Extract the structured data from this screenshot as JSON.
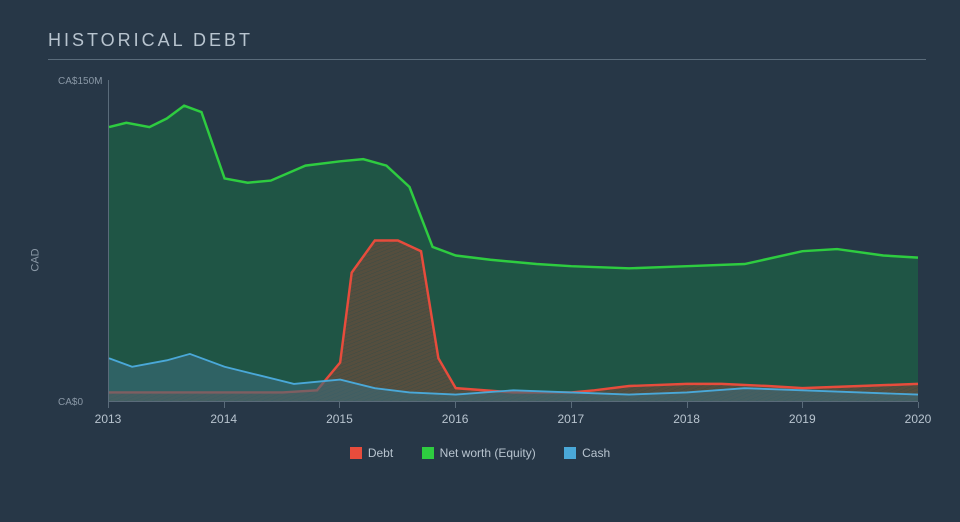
{
  "title": "HISTORICAL DEBT",
  "chart": {
    "type": "area",
    "y_axis_label": "CAD",
    "ylim": [
      0,
      150
    ],
    "y_ticks": [
      {
        "value": 0,
        "label": "CA$0"
      },
      {
        "value": 150,
        "label": "CA$150M"
      }
    ],
    "x_ticks": [
      "2013",
      "2014",
      "2015",
      "2016",
      "2017",
      "2018",
      "2019",
      "2020"
    ],
    "xlim": [
      2013,
      2020
    ],
    "background_color": "#273747",
    "axis_color": "#5a6b7a",
    "tick_font_color": "#8a98a6",
    "x_tick_font_color": "#b8c4cf",
    "title_color": "#b8c4cf",
    "title_fontsize": 18,
    "tick_fontsize": 10,
    "series": [
      {
        "name": "Net worth (Equity)",
        "stroke": "#2ecc40",
        "fill": "#1e5a45",
        "fill_opacity": 0.85,
        "stroke_width": 2,
        "hatched": false,
        "data": [
          [
            2013.0,
            128
          ],
          [
            2013.15,
            130
          ],
          [
            2013.35,
            128
          ],
          [
            2013.5,
            132
          ],
          [
            2013.65,
            138
          ],
          [
            2013.8,
            135
          ],
          [
            2014.0,
            104
          ],
          [
            2014.2,
            102
          ],
          [
            2014.4,
            103
          ],
          [
            2014.7,
            110
          ],
          [
            2015.0,
            112
          ],
          [
            2015.2,
            113
          ],
          [
            2015.4,
            110
          ],
          [
            2015.6,
            100
          ],
          [
            2015.8,
            72
          ],
          [
            2016.0,
            68
          ],
          [
            2016.3,
            66
          ],
          [
            2016.7,
            64
          ],
          [
            2017.0,
            63
          ],
          [
            2017.5,
            62
          ],
          [
            2018.0,
            63
          ],
          [
            2018.5,
            64
          ],
          [
            2019.0,
            70
          ],
          [
            2019.3,
            71
          ],
          [
            2019.7,
            68
          ],
          [
            2020.0,
            67
          ]
        ]
      },
      {
        "name": "Debt",
        "stroke": "#e74c3c",
        "fill": "#7a4a3a",
        "fill_opacity": 0.6,
        "stroke_width": 2,
        "hatched": true,
        "hatch_color": "#3a5a5a",
        "data": [
          [
            2013.0,
            4
          ],
          [
            2013.5,
            4
          ],
          [
            2014.0,
            4
          ],
          [
            2014.5,
            4
          ],
          [
            2014.8,
            5
          ],
          [
            2015.0,
            18
          ],
          [
            2015.1,
            60
          ],
          [
            2015.3,
            75
          ],
          [
            2015.5,
            75
          ],
          [
            2015.7,
            70
          ],
          [
            2015.85,
            20
          ],
          [
            2016.0,
            6
          ],
          [
            2016.5,
            4
          ],
          [
            2017.0,
            4
          ],
          [
            2017.2,
            5
          ],
          [
            2017.5,
            7
          ],
          [
            2018.0,
            8
          ],
          [
            2018.3,
            8
          ],
          [
            2018.7,
            7
          ],
          [
            2019.0,
            6
          ],
          [
            2019.5,
            7
          ],
          [
            2020.0,
            8
          ]
        ]
      },
      {
        "name": "Cash",
        "stroke": "#4aa8d8",
        "fill": "#3a6a7a",
        "fill_opacity": 0.6,
        "stroke_width": 1.5,
        "hatched": false,
        "data": [
          [
            2013.0,
            20
          ],
          [
            2013.2,
            16
          ],
          [
            2013.5,
            19
          ],
          [
            2013.7,
            22
          ],
          [
            2014.0,
            16
          ],
          [
            2014.3,
            12
          ],
          [
            2014.6,
            8
          ],
          [
            2015.0,
            10
          ],
          [
            2015.3,
            6
          ],
          [
            2015.6,
            4
          ],
          [
            2016.0,
            3
          ],
          [
            2016.5,
            5
          ],
          [
            2017.0,
            4
          ],
          [
            2017.5,
            3
          ],
          [
            2018.0,
            4
          ],
          [
            2018.5,
            6
          ],
          [
            2019.0,
            5
          ],
          [
            2019.5,
            4
          ],
          [
            2020.0,
            3
          ]
        ]
      }
    ],
    "legend": [
      {
        "label": "Debt",
        "color": "#e74c3c"
      },
      {
        "label": "Net worth (Equity)",
        "color": "#2ecc40"
      },
      {
        "label": "Cash",
        "color": "#4aa8d8"
      }
    ]
  }
}
